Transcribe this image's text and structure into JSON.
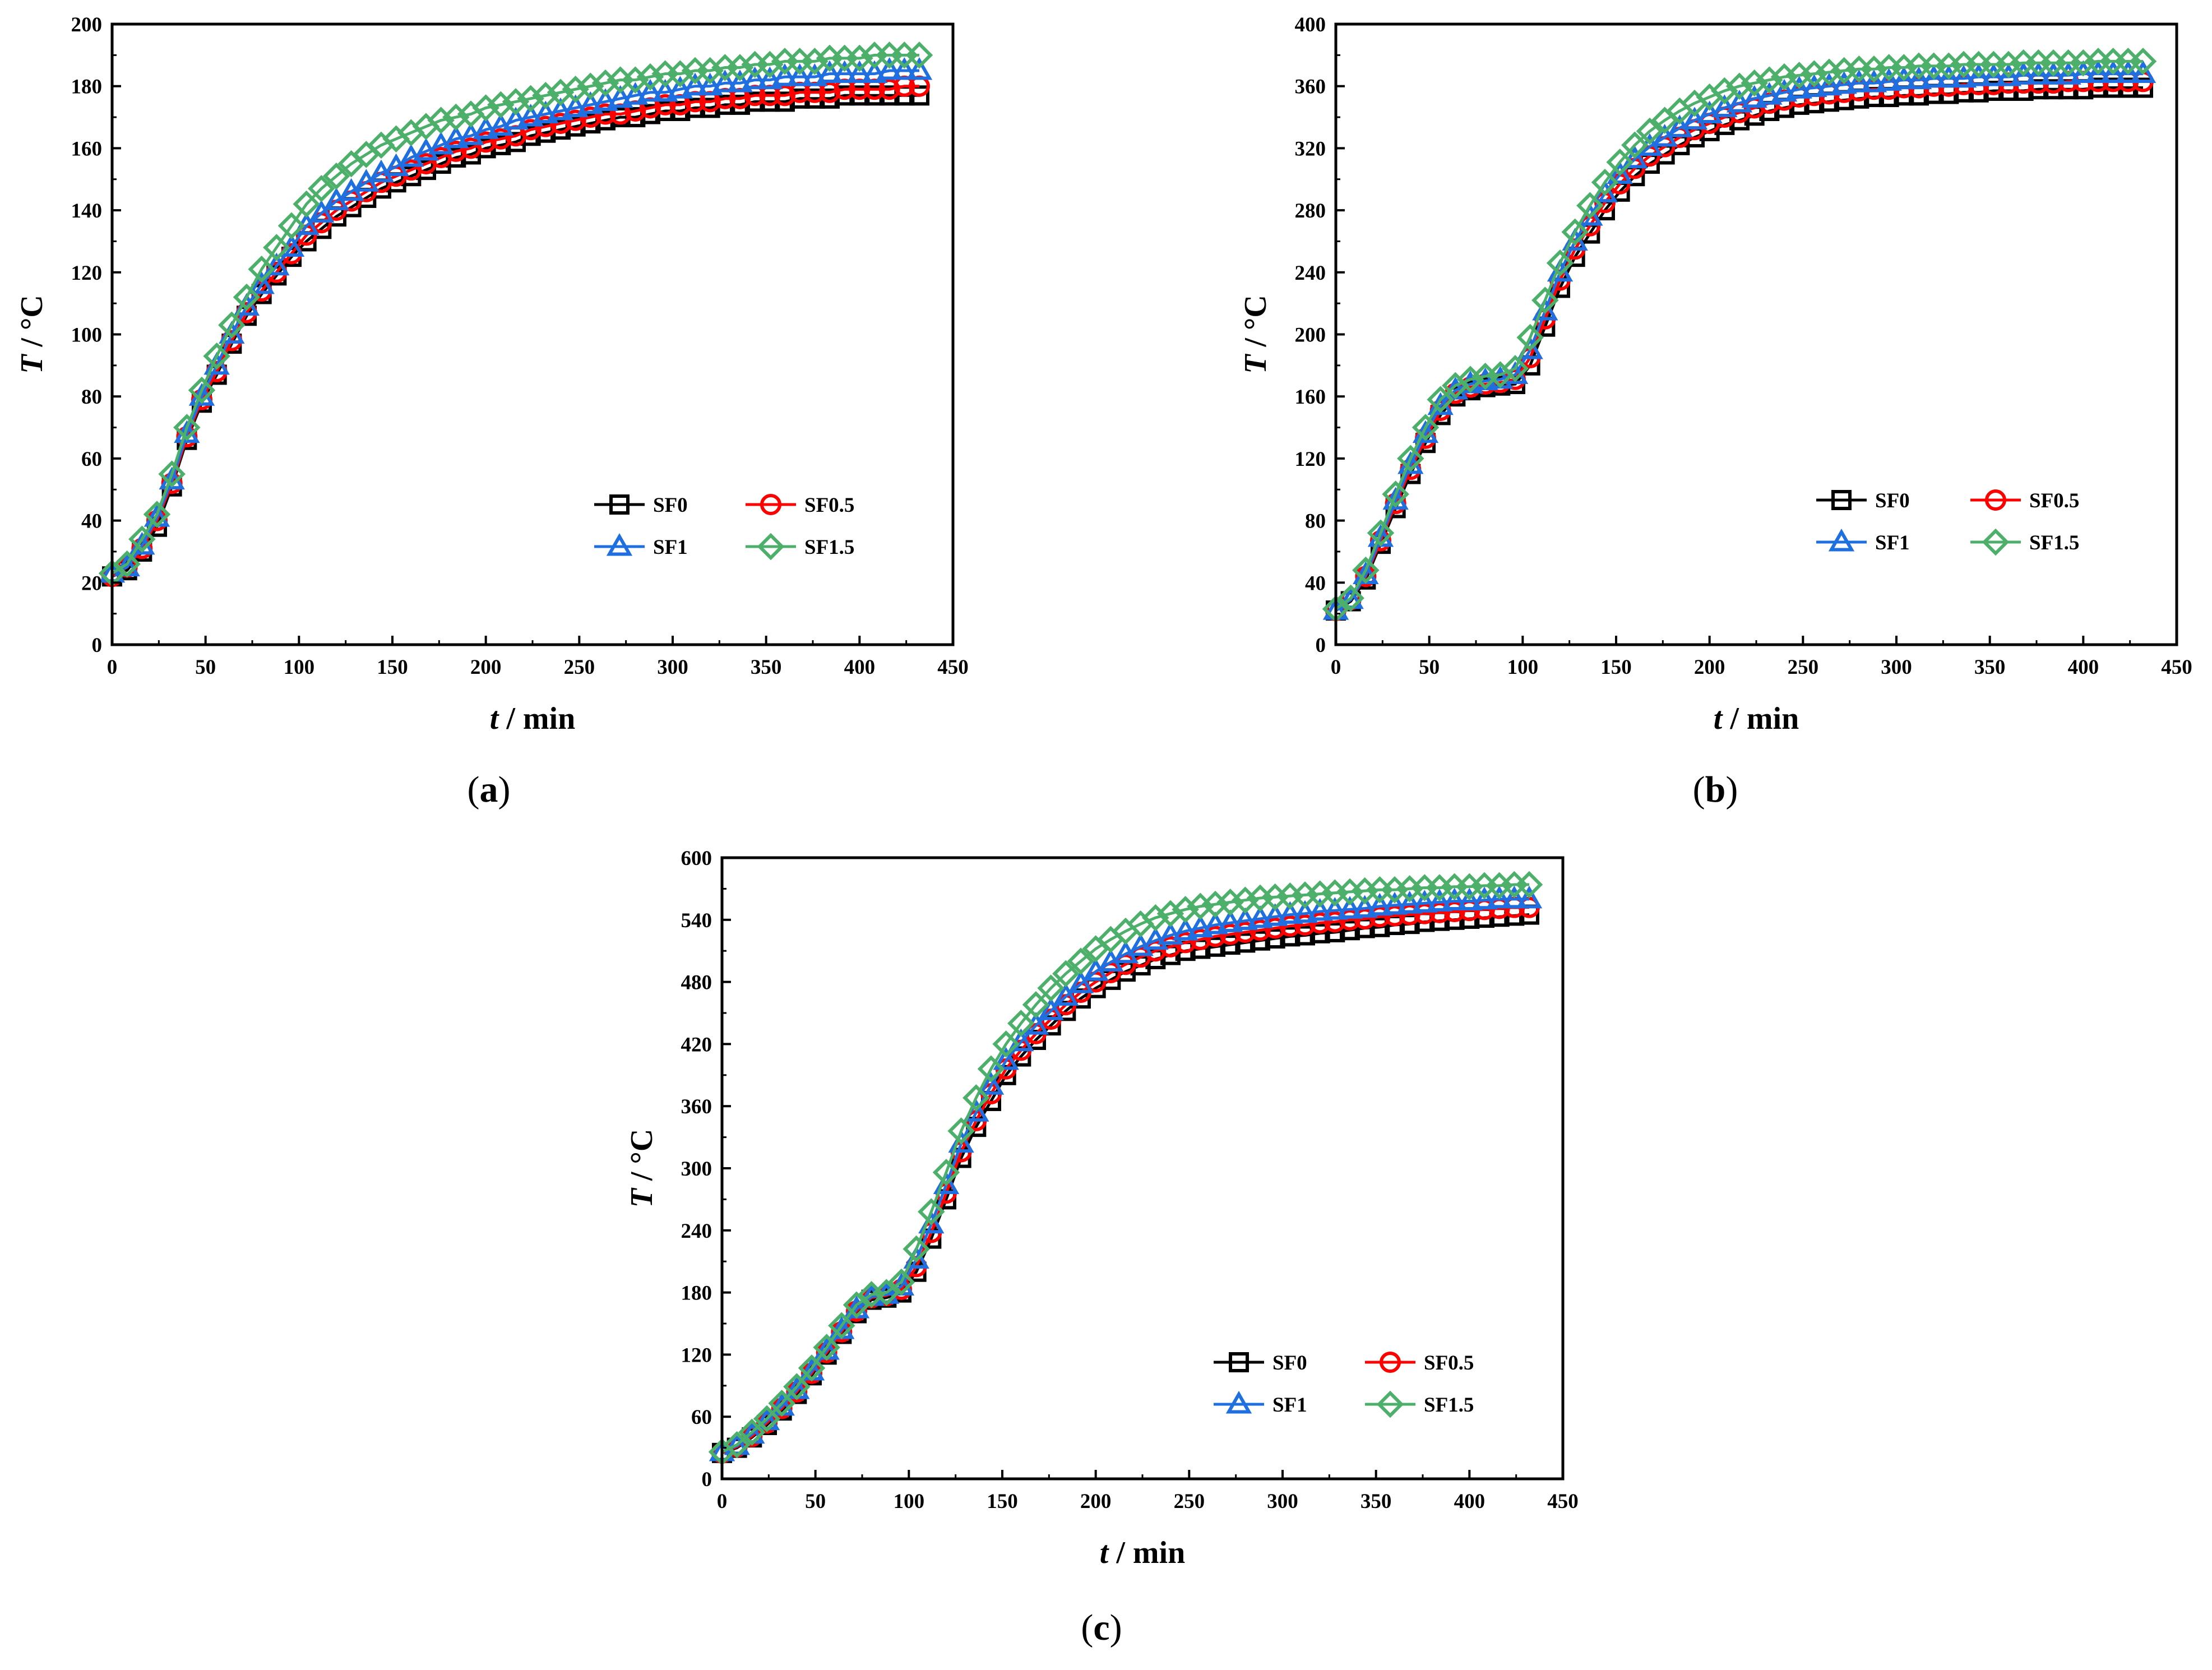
{
  "chart_data": [
    {
      "type": "line",
      "panel": "a",
      "caption_letter": "a",
      "xlabel_symbol": "t",
      "xlabel_unit": " / min",
      "ylabel_symbol": "T",
      "ylabel_unit": " / °C",
      "xlim": [
        0,
        450
      ],
      "ylim": [
        0,
        200
      ],
      "xticks": [
        0,
        50,
        100,
        150,
        200,
        250,
        300,
        350,
        400,
        450
      ],
      "yticks": [
        0,
        20,
        40,
        60,
        80,
        100,
        120,
        140,
        160,
        180,
        200
      ],
      "legend_position": "bottom-right",
      "x": [
        0,
        8,
        16,
        24,
        32,
        40,
        48,
        56,
        64,
        72,
        80,
        88,
        96,
        104,
        112,
        120,
        128,
        136,
        144,
        152,
        160,
        168,
        176,
        184,
        192,
        200,
        208,
        216,
        224,
        232,
        240,
        248,
        256,
        264,
        272,
        280,
        288,
        296,
        304,
        312,
        320,
        328,
        336,
        344,
        352,
        360,
        368,
        376,
        384,
        392,
        400,
        408,
        416,
        424,
        432
      ],
      "series": [
        {
          "name": "SF0",
          "color": "#000000",
          "marker": "square",
          "values": [
            22,
            24,
            30,
            38,
            51,
            66,
            78,
            87,
            97,
            106,
            113,
            119,
            125,
            130,
            134,
            138,
            141,
            144,
            147,
            149,
            151,
            153,
            155,
            157,
            158,
            160,
            161,
            162,
            164,
            165,
            166,
            167,
            168,
            169,
            170,
            170,
            171,
            172,
            172,
            173,
            173,
            174,
            174,
            175,
            175,
            175,
            176,
            176,
            176,
            177,
            177,
            177,
            177,
            177,
            177
          ]
        },
        {
          "name": "SF0.5",
          "color": "#ff0000",
          "marker": "circle",
          "values": [
            22,
            25,
            31,
            40,
            52,
            67,
            79,
            88,
            98,
            107,
            114,
            120,
            126,
            132,
            136,
            140,
            143,
            146,
            149,
            151,
            153,
            155,
            157,
            159,
            160,
            162,
            163,
            164,
            166,
            167,
            168,
            169,
            170,
            171,
            171,
            172,
            173,
            174,
            174,
            175,
            175,
            176,
            176,
            177,
            177,
            177,
            178,
            178,
            178,
            179,
            179,
            179,
            179,
            180,
            180
          ]
        },
        {
          "name": "SF1",
          "color": "#1f6fe0",
          "marker": "triangle",
          "values": [
            23,
            25,
            32,
            41,
            53,
            68,
            80,
            90,
            100,
            109,
            116,
            122,
            128,
            135,
            139,
            143,
            146,
            149,
            152,
            154,
            157,
            159,
            161,
            163,
            164,
            166,
            167,
            169,
            170,
            171,
            172,
            173,
            174,
            175,
            176,
            177,
            178,
            178,
            179,
            180,
            180,
            181,
            181,
            182,
            182,
            183,
            183,
            183,
            184,
            184,
            184,
            184,
            185,
            185,
            185
          ]
        },
        {
          "name": "SF1.5",
          "color": "#4caf6a",
          "marker": "diamond",
          "values": [
            23,
            26,
            34,
            42,
            55,
            70,
            82,
            93,
            103,
            112,
            121,
            128,
            135,
            142,
            147,
            151,
            155,
            158,
            161,
            163,
            165,
            167,
            169,
            170,
            171,
            173,
            174,
            175,
            176,
            177,
            178,
            179,
            180,
            181,
            182,
            182,
            183,
            184,
            184,
            185,
            185,
            186,
            186,
            187,
            187,
            188,
            188,
            188,
            189,
            189,
            189,
            190,
            190,
            190,
            190
          ]
        }
      ]
    },
    {
      "type": "line",
      "panel": "b",
      "caption_letter": "b",
      "xlabel_symbol": "t",
      "xlabel_unit": " / min",
      "ylabel_symbol": "T",
      "ylabel_unit": " / °C",
      "xlim": [
        0,
        450
      ],
      "ylim": [
        0,
        400
      ],
      "xticks": [
        0,
        50,
        100,
        150,
        200,
        250,
        300,
        350,
        400,
        450
      ],
      "yticks": [
        0,
        40,
        80,
        120,
        160,
        200,
        240,
        280,
        320,
        360,
        400
      ],
      "legend_position": "bottom-right",
      "x": [
        0,
        8,
        16,
        24,
        32,
        40,
        48,
        56,
        64,
        72,
        80,
        88,
        96,
        104,
        112,
        120,
        128,
        136,
        144,
        152,
        160,
        168,
        176,
        184,
        192,
        200,
        208,
        216,
        224,
        232,
        240,
        248,
        256,
        264,
        272,
        280,
        288,
        296,
        304,
        312,
        320,
        328,
        336,
        344,
        352,
        360,
        368,
        376,
        384,
        392,
        400,
        408,
        416,
        424,
        432
      ],
      "series": [
        {
          "name": "SF0",
          "color": "#000000",
          "marker": "square",
          "values": [
            22,
            28,
            42,
            65,
            88,
            110,
            130,
            148,
            160,
            164,
            166,
            167,
            168,
            180,
            205,
            230,
            250,
            265,
            280,
            292,
            302,
            310,
            316,
            322,
            327,
            331,
            335,
            338,
            341,
            344,
            346,
            348,
            349,
            350,
            351,
            352,
            353,
            353,
            354,
            354,
            355,
            355,
            356,
            356,
            357,
            357,
            357,
            358,
            358,
            358,
            358,
            359,
            359,
            359,
            359
          ]
        },
        {
          "name": "SF0.5",
          "color": "#ff0000",
          "marker": "circle",
          "values": [
            22,
            29,
            44,
            67,
            91,
            113,
            133,
            151,
            162,
            166,
            168,
            169,
            171,
            185,
            210,
            235,
            255,
            270,
            285,
            297,
            307,
            315,
            321,
            327,
            332,
            336,
            340,
            343,
            346,
            349,
            351,
            353,
            354,
            355,
            356,
            357,
            358,
            358,
            359,
            359,
            360,
            360,
            361,
            361,
            361,
            362,
            362,
            362,
            362,
            363,
            363,
            363,
            363,
            363,
            363
          ]
        },
        {
          "name": "SF1",
          "color": "#1f6fe0",
          "marker": "triangle",
          "values": [
            22,
            29,
            45,
            69,
            93,
            116,
            136,
            154,
            164,
            168,
            170,
            171,
            174,
            190,
            215,
            240,
            260,
            276,
            291,
            303,
            313,
            321,
            327,
            333,
            338,
            342,
            346,
            349,
            352,
            354,
            356,
            358,
            359,
            360,
            361,
            362,
            362,
            363,
            364,
            364,
            365,
            365,
            365,
            366,
            366,
            366,
            367,
            367,
            367,
            367,
            368,
            368,
            368,
            368,
            368
          ]
        },
        {
          "name": "SF1.5",
          "color": "#4caf6a",
          "marker": "diamond",
          "values": [
            23,
            30,
            48,
            72,
            97,
            120,
            140,
            158,
            167,
            171,
            173,
            174,
            178,
            198,
            222,
            246,
            266,
            283,
            298,
            311,
            322,
            331,
            338,
            344,
            349,
            353,
            357,
            360,
            362,
            364,
            366,
            367,
            368,
            369,
            370,
            371,
            371,
            372,
            372,
            373,
            373,
            373,
            374,
            374,
            374,
            374,
            375,
            375,
            375,
            375,
            375,
            376,
            376,
            376,
            376
          ]
        }
      ]
    },
    {
      "type": "line",
      "panel": "c",
      "caption_letter": "c",
      "xlabel_symbol": "t",
      "xlabel_unit": " / min",
      "ylabel_symbol": "T",
      "ylabel_unit": " / °C",
      "xlim": [
        0,
        450
      ],
      "ylim": [
        0,
        600
      ],
      "xticks": [
        0,
        50,
        100,
        150,
        200,
        250,
        300,
        350,
        400,
        450
      ],
      "yticks": [
        0,
        60,
        120,
        180,
        240,
        300,
        360,
        420,
        480,
        540,
        600
      ],
      "legend_position": "bottom-right",
      "x": [
        0,
        8,
        16,
        24,
        32,
        40,
        48,
        56,
        64,
        72,
        80,
        88,
        96,
        104,
        112,
        120,
        128,
        136,
        144,
        152,
        160,
        168,
        176,
        184,
        192,
        200,
        208,
        216,
        224,
        232,
        240,
        248,
        256,
        264,
        272,
        280,
        288,
        296,
        304,
        312,
        320,
        328,
        336,
        344,
        352,
        360,
        368,
        376,
        384,
        392,
        400,
        408,
        416,
        424,
        432
      ],
      "series": [
        {
          "name": "SF0",
          "color": "#000000",
          "marker": "square",
          "values": [
            25,
            30,
            40,
            52,
            66,
            82,
            100,
            120,
            140,
            160,
            173,
            175,
            180,
            200,
            232,
            270,
            310,
            340,
            365,
            390,
            408,
            424,
            438,
            452,
            464,
            474,
            482,
            490,
            496,
            502,
            506,
            510,
            512,
            514,
            516,
            518,
            520,
            522,
            524,
            525,
            527,
            528,
            530,
            532,
            533,
            535,
            536,
            538,
            539,
            540,
            541,
            542,
            543,
            544,
            545
          ]
        },
        {
          "name": "SF0.5",
          "color": "#ff0000",
          "marker": "circle",
          "values": [
            25,
            31,
            41,
            54,
            68,
            84,
            102,
            122,
            142,
            162,
            175,
            177,
            183,
            205,
            238,
            276,
            316,
            346,
            372,
            396,
            414,
            430,
            444,
            458,
            470,
            480,
            489,
            497,
            504,
            510,
            514,
            518,
            521,
            524,
            526,
            528,
            530,
            532,
            534,
            535,
            537,
            538,
            540,
            541,
            543,
            544,
            545,
            546,
            547,
            548,
            549,
            550,
            551,
            552,
            552
          ]
        },
        {
          "name": "SF1",
          "color": "#1f6fe0",
          "marker": "triangle",
          "values": [
            26,
            32,
            43,
            56,
            70,
            86,
            104,
            124,
            144,
            164,
            176,
            178,
            186,
            212,
            246,
            284,
            324,
            354,
            380,
            404,
            422,
            438,
            452,
            466,
            478,
            490,
            499,
            507,
            514,
            520,
            525,
            529,
            532,
            535,
            537,
            539,
            541,
            543,
            545,
            546,
            548,
            549,
            550,
            551,
            553,
            554,
            555,
            556,
            557,
            558,
            558,
            559,
            560,
            560,
            560
          ]
        },
        {
          "name": "SF1.5",
          "color": "#4caf6a",
          "marker": "diamond",
          "values": [
            26,
            33,
            45,
            58,
            73,
            89,
            107,
            127,
            148,
            168,
            178,
            180,
            190,
            222,
            258,
            296,
            336,
            368,
            396,
            420,
            440,
            458,
            474,
            488,
            500,
            512,
            521,
            529,
            536,
            542,
            546,
            550,
            553,
            555,
            557,
            559,
            561,
            562,
            563,
            564,
            565,
            566,
            567,
            568,
            569,
            569,
            570,
            571,
            571,
            572,
            572,
            573,
            573,
            574,
            574
          ]
        }
      ]
    }
  ]
}
